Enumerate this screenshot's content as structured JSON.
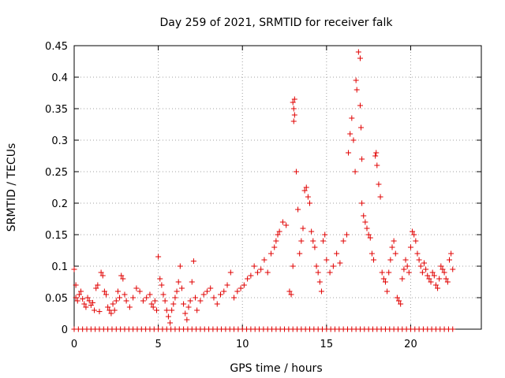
{
  "chart_data": {
    "type": "scatter",
    "title": "Day 259 of 2021, SRMTID for receiver falk",
    "xlabel": "GPS time / hours",
    "ylabel": "SRMTID / TECUs",
    "xlim": [
      0,
      24.2
    ],
    "ylim": [
      0,
      0.45
    ],
    "xticks": [
      0,
      5,
      10,
      15,
      20
    ],
    "yticks": [
      0,
      0.05,
      0.1,
      0.15,
      0.2,
      0.25,
      0.3,
      0.35,
      0.4,
      0.45
    ],
    "ytick_labels": [
      "0",
      "0.05",
      "0.1",
      "0.15",
      "0.2",
      "0.25",
      "0.3",
      "0.35",
      "0.4",
      "0.45"
    ],
    "xtick_labels": [
      "0",
      "5",
      "10",
      "15",
      "20"
    ],
    "grid": true,
    "marker": "+",
    "color": "#e00000",
    "series": [
      {
        "name": "SRMTID",
        "zero_line": {
          "x_start": 0.0,
          "x_end": 22.5,
          "step": 0.25,
          "y": 0
        },
        "points": [
          [
            0.0,
            0.095
          ],
          [
            0.1,
            0.05
          ],
          [
            0.1,
            0.07
          ],
          [
            0.2,
            0.045
          ],
          [
            0.3,
            0.055
          ],
          [
            0.4,
            0.06
          ],
          [
            0.5,
            0.048
          ],
          [
            0.6,
            0.04
          ],
          [
            0.7,
            0.035
          ],
          [
            0.8,
            0.05
          ],
          [
            0.9,
            0.045
          ],
          [
            1.0,
            0.038
          ],
          [
            1.1,
            0.042
          ],
          [
            1.2,
            0.03
          ],
          [
            1.3,
            0.065
          ],
          [
            1.4,
            0.07
          ],
          [
            1.5,
            0.028
          ],
          [
            1.6,
            0.09
          ],
          [
            1.7,
            0.085
          ],
          [
            1.8,
            0.06
          ],
          [
            1.9,
            0.055
          ],
          [
            2.0,
            0.035
          ],
          [
            2.1,
            0.03
          ],
          [
            2.2,
            0.025
          ],
          [
            2.3,
            0.04
          ],
          [
            2.4,
            0.03
          ],
          [
            2.5,
            0.045
          ],
          [
            2.6,
            0.06
          ],
          [
            2.7,
            0.05
          ],
          [
            2.8,
            0.085
          ],
          [
            2.9,
            0.08
          ],
          [
            3.0,
            0.055
          ],
          [
            3.1,
            0.045
          ],
          [
            3.3,
            0.035
          ],
          [
            3.5,
            0.05
          ],
          [
            3.7,
            0.065
          ],
          [
            3.9,
            0.06
          ],
          [
            4.1,
            0.045
          ],
          [
            4.3,
            0.05
          ],
          [
            4.5,
            0.055
          ],
          [
            4.6,
            0.04
          ],
          [
            4.7,
            0.035
          ],
          [
            4.8,
            0.045
          ],
          [
            4.9,
            0.03
          ],
          [
            5.0,
            0.115
          ],
          [
            5.1,
            0.08
          ],
          [
            5.2,
            0.07
          ],
          [
            5.3,
            0.055
          ],
          [
            5.4,
            0.045
          ],
          [
            5.5,
            0.03
          ],
          [
            5.6,
            0.02
          ],
          [
            5.7,
            0.01
          ],
          [
            5.8,
            0.03
          ],
          [
            5.9,
            0.04
          ],
          [
            6.0,
            0.05
          ],
          [
            6.1,
            0.06
          ],
          [
            6.2,
            0.075
          ],
          [
            6.3,
            0.1
          ],
          [
            6.4,
            0.065
          ],
          [
            6.5,
            0.04
          ],
          [
            6.6,
            0.025
          ],
          [
            6.7,
            0.015
          ],
          [
            6.8,
            0.035
          ],
          [
            6.9,
            0.045
          ],
          [
            7.0,
            0.075
          ],
          [
            7.1,
            0.108
          ],
          [
            7.2,
            0.05
          ],
          [
            7.3,
            0.03
          ],
          [
            7.5,
            0.045
          ],
          [
            7.7,
            0.055
          ],
          [
            7.9,
            0.06
          ],
          [
            8.1,
            0.065
          ],
          [
            8.3,
            0.05
          ],
          [
            8.5,
            0.04
          ],
          [
            8.7,
            0.055
          ],
          [
            8.9,
            0.06
          ],
          [
            9.1,
            0.07
          ],
          [
            9.3,
            0.09
          ],
          [
            9.5,
            0.05
          ],
          [
            9.7,
            0.06
          ],
          [
            9.9,
            0.065
          ],
          [
            10.1,
            0.07
          ],
          [
            10.3,
            0.08
          ],
          [
            10.5,
            0.085
          ],
          [
            10.7,
            0.1
          ],
          [
            10.9,
            0.09
          ],
          [
            11.1,
            0.095
          ],
          [
            11.3,
            0.11
          ],
          [
            11.5,
            0.09
          ],
          [
            11.7,
            0.12
          ],
          [
            11.9,
            0.13
          ],
          [
            12.0,
            0.14
          ],
          [
            12.1,
            0.15
          ],
          [
            12.2,
            0.155
          ],
          [
            12.4,
            0.17
          ],
          [
            12.6,
            0.165
          ],
          [
            12.8,
            0.06
          ],
          [
            12.9,
            0.055
          ],
          [
            13.0,
            0.1
          ],
          [
            13.0,
            0.36
          ],
          [
            13.05,
            0.35
          ],
          [
            13.1,
            0.365
          ],
          [
            13.05,
            0.33
          ],
          [
            13.1,
            0.34
          ],
          [
            13.2,
            0.25
          ],
          [
            13.3,
            0.19
          ],
          [
            13.4,
            0.12
          ],
          [
            13.5,
            0.14
          ],
          [
            13.6,
            0.16
          ],
          [
            13.7,
            0.22
          ],
          [
            13.8,
            0.225
          ],
          [
            13.9,
            0.21
          ],
          [
            14.0,
            0.2
          ],
          [
            14.1,
            0.155
          ],
          [
            14.2,
            0.14
          ],
          [
            14.3,
            0.13
          ],
          [
            14.4,
            0.1
          ],
          [
            14.5,
            0.09
          ],
          [
            14.6,
            0.075
          ],
          [
            14.7,
            0.06
          ],
          [
            14.8,
            0.14
          ],
          [
            14.9,
            0.15
          ],
          [
            15.0,
            0.11
          ],
          [
            15.2,
            0.09
          ],
          [
            15.4,
            0.1
          ],
          [
            15.6,
            0.12
          ],
          [
            15.8,
            0.105
          ],
          [
            16.0,
            0.14
          ],
          [
            16.2,
            0.15
          ],
          [
            16.3,
            0.28
          ],
          [
            16.4,
            0.31
          ],
          [
            16.5,
            0.335
          ],
          [
            16.6,
            0.3
          ],
          [
            16.7,
            0.25
          ],
          [
            16.75,
            0.395
          ],
          [
            16.8,
            0.38
          ],
          [
            16.9,
            0.44
          ],
          [
            17.0,
            0.43
          ],
          [
            17.0,
            0.355
          ],
          [
            17.05,
            0.32
          ],
          [
            17.1,
            0.27
          ],
          [
            17.1,
            0.2
          ],
          [
            17.2,
            0.18
          ],
          [
            17.3,
            0.17
          ],
          [
            17.4,
            0.16
          ],
          [
            17.5,
            0.15
          ],
          [
            17.6,
            0.145
          ],
          [
            17.7,
            0.12
          ],
          [
            17.8,
            0.11
          ],
          [
            17.9,
            0.275
          ],
          [
            17.95,
            0.28
          ],
          [
            18.0,
            0.26
          ],
          [
            18.1,
            0.23
          ],
          [
            18.2,
            0.21
          ],
          [
            18.3,
            0.09
          ],
          [
            18.4,
            0.08
          ],
          [
            18.5,
            0.075
          ],
          [
            18.6,
            0.06
          ],
          [
            18.7,
            0.09
          ],
          [
            18.8,
            0.11
          ],
          [
            18.9,
            0.13
          ],
          [
            19.0,
            0.14
          ],
          [
            19.1,
            0.12
          ],
          [
            19.2,
            0.05
          ],
          [
            19.3,
            0.045
          ],
          [
            19.4,
            0.04
          ],
          [
            19.5,
            0.08
          ],
          [
            19.6,
            0.095
          ],
          [
            19.7,
            0.11
          ],
          [
            19.8,
            0.1
          ],
          [
            19.9,
            0.09
          ],
          [
            20.0,
            0.13
          ],
          [
            20.1,
            0.155
          ],
          [
            20.2,
            0.15
          ],
          [
            20.3,
            0.14
          ],
          [
            20.4,
            0.12
          ],
          [
            20.5,
            0.11
          ],
          [
            20.6,
            0.1
          ],
          [
            20.7,
            0.09
          ],
          [
            20.8,
            0.105
          ],
          [
            20.9,
            0.095
          ],
          [
            21.0,
            0.085
          ],
          [
            21.1,
            0.08
          ],
          [
            21.2,
            0.075
          ],
          [
            21.3,
            0.09
          ],
          [
            21.4,
            0.085
          ],
          [
            21.5,
            0.07
          ],
          [
            21.6,
            0.065
          ],
          [
            21.7,
            0.08
          ],
          [
            21.8,
            0.1
          ],
          [
            21.9,
            0.095
          ],
          [
            22.0,
            0.09
          ],
          [
            22.1,
            0.08
          ],
          [
            22.2,
            0.075
          ],
          [
            22.3,
            0.11
          ],
          [
            22.4,
            0.12
          ],
          [
            22.5,
            0.095
          ]
        ]
      }
    ]
  }
}
